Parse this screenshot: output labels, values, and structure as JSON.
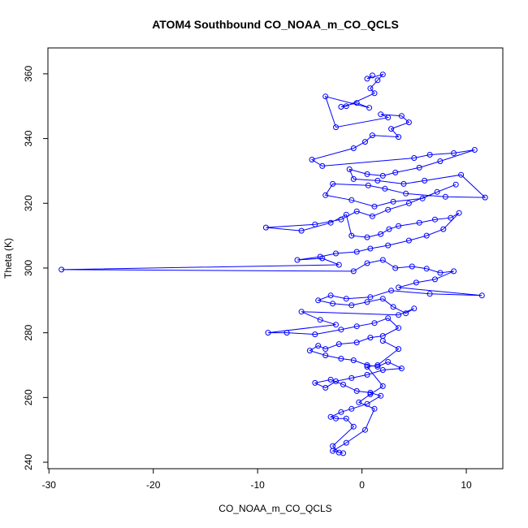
{
  "chart_data": {
    "type": "scatter",
    "title": "ATOM4 Southbound CO_NOAA_m_CO_QCLS",
    "xlabel": "CO_NOAA_m_CO_QCLS",
    "ylabel": "Theta (K)",
    "xlim": [
      -30.1,
      13.5
    ],
    "ylim": [
      238.0,
      368.0
    ],
    "xticks": [
      -30,
      -20,
      -10,
      0,
      10
    ],
    "yticks": [
      240,
      260,
      280,
      300,
      320,
      340,
      360
    ],
    "grid": false,
    "legend": "none",
    "series": [
      {
        "line_color": "#0000ff",
        "marker": "open-circle",
        "connected": true,
        "note_points": "A representative subset read off the dense cluster; includes notable outliers.",
        "x": [
          1.0,
          0.5,
          2.0,
          1.5,
          0.8,
          1.2,
          -1.5,
          -2.0,
          -0.5,
          0.7,
          -3.5,
          -2.5,
          2.5,
          1.8,
          3.8,
          4.5,
          2.8,
          3.5,
          1.0,
          0.3,
          -0.8,
          -4.8,
          -3.8,
          5.0,
          6.5,
          8.8,
          10.8,
          7.5,
          5.5,
          3.2,
          2.0,
          0.5,
          -1.2,
          -0.8,
          1.5,
          4.0,
          6.0,
          9.5,
          11.8,
          8.0,
          4.2,
          2.2,
          0.6,
          -2.8,
          -3.5,
          -1.0,
          1.2,
          3.0,
          5.8,
          7.2,
          9.0,
          4.5,
          2.5,
          1.0,
          -0.5,
          -2.0,
          -4.5,
          -9.2,
          -5.8,
          -3.0,
          -1.5,
          -1.0,
          0.5,
          1.8,
          2.6,
          3.5,
          5.5,
          7.0,
          8.5,
          9.3,
          7.8,
          6.2,
          4.5,
          2.5,
          0.8,
          -0.5,
          -2.5,
          -4.0,
          -6.2,
          -3.8,
          -2.2,
          -28.8,
          -0.8,
          0.5,
          2.0,
          3.2,
          4.8,
          6.2,
          7.5,
          8.8,
          7.0,
          5.2,
          3.5,
          11.5,
          6.5,
          2.8,
          0.8,
          -1.5,
          -3.0,
          -4.2,
          -2.8,
          -1.0,
          0.5,
          2.0,
          3.0,
          4.2,
          5.0,
          3.5,
          -5.8,
          -4.0,
          -2.5,
          -9.0,
          -7.2,
          -4.5,
          -2.0,
          -0.5,
          1.2,
          2.5,
          3.5,
          2.0,
          0.8,
          -0.5,
          -2.2,
          -3.5,
          -4.2,
          -5.0,
          -3.5,
          -2.0,
          -0.8,
          0.5,
          1.5,
          2.5,
          3.8,
          2.0,
          0.5,
          -1.0,
          -2.5,
          -3.5,
          -4.5,
          -3.0,
          -1.8,
          -0.5,
          0.8,
          1.8,
          0.5,
          -1.0,
          -2.0,
          -3.0,
          -2.5,
          -1.5,
          -0.8,
          -2.8,
          -2.2,
          -1.8,
          -2.8,
          -1.5,
          0.3,
          1.2,
          -0.3,
          0.8,
          2.0,
          0.5,
          1.5,
          3.5,
          2.0
        ],
        "y": [
          359.5,
          358.5,
          359.8,
          358.0,
          355.5,
          354.0,
          350.0,
          349.8,
          351.0,
          349.5,
          353.0,
          343.5,
          346.5,
          347.5,
          347.0,
          345.0,
          343.0,
          340.5,
          341.0,
          339.0,
          337.0,
          333.5,
          331.5,
          334.0,
          335.0,
          335.5,
          336.5,
          333.0,
          331.0,
          329.5,
          328.5,
          329.0,
          330.5,
          327.5,
          327.0,
          326.0,
          327.0,
          328.8,
          321.8,
          322.0,
          323.0,
          324.5,
          325.5,
          326.0,
          322.5,
          321.0,
          319.0,
          320.5,
          321.5,
          323.5,
          325.8,
          320.0,
          318.0,
          316.0,
          317.5,
          315.0,
          313.5,
          312.5,
          311.5,
          314.0,
          316.5,
          310.0,
          309.5,
          310.5,
          312.0,
          313.0,
          314.0,
          315.0,
          315.5,
          317.0,
          312.0,
          310.0,
          308.5,
          307.0,
          306.0,
          305.0,
          304.5,
          303.5,
          302.5,
          303.0,
          301.0,
          299.5,
          299.0,
          301.5,
          302.5,
          300.0,
          300.5,
          299.8,
          298.5,
          299.0,
          296.5,
          295.5,
          294.0,
          291.5,
          292.0,
          293.0,
          291.0,
          290.5,
          291.5,
          290.0,
          289.0,
          288.5,
          289.5,
          290.5,
          288.0,
          286.0,
          287.5,
          285.5,
          286.5,
          284.0,
          282.5,
          280.0,
          280.0,
          279.5,
          281.0,
          282.0,
          283.0,
          284.5,
          281.5,
          279.0,
          278.5,
          277.0,
          276.5,
          275.0,
          276.0,
          274.5,
          273.0,
          272.0,
          271.5,
          270.0,
          269.5,
          271.0,
          269.0,
          268.5,
          267.0,
          266.0,
          265.0,
          263.0,
          264.5,
          265.5,
          264.0,
          262.0,
          261.5,
          260.5,
          258.0,
          256.5,
          255.5,
          254.0,
          253.5,
          253.5,
          251.0,
          245.0,
          243.0,
          242.8,
          243.5,
          246.0,
          250.0,
          256.5,
          258.5,
          261.0,
          263.5,
          269.5,
          270.0,
          275.0,
          277.5
        ]
      }
    ]
  }
}
